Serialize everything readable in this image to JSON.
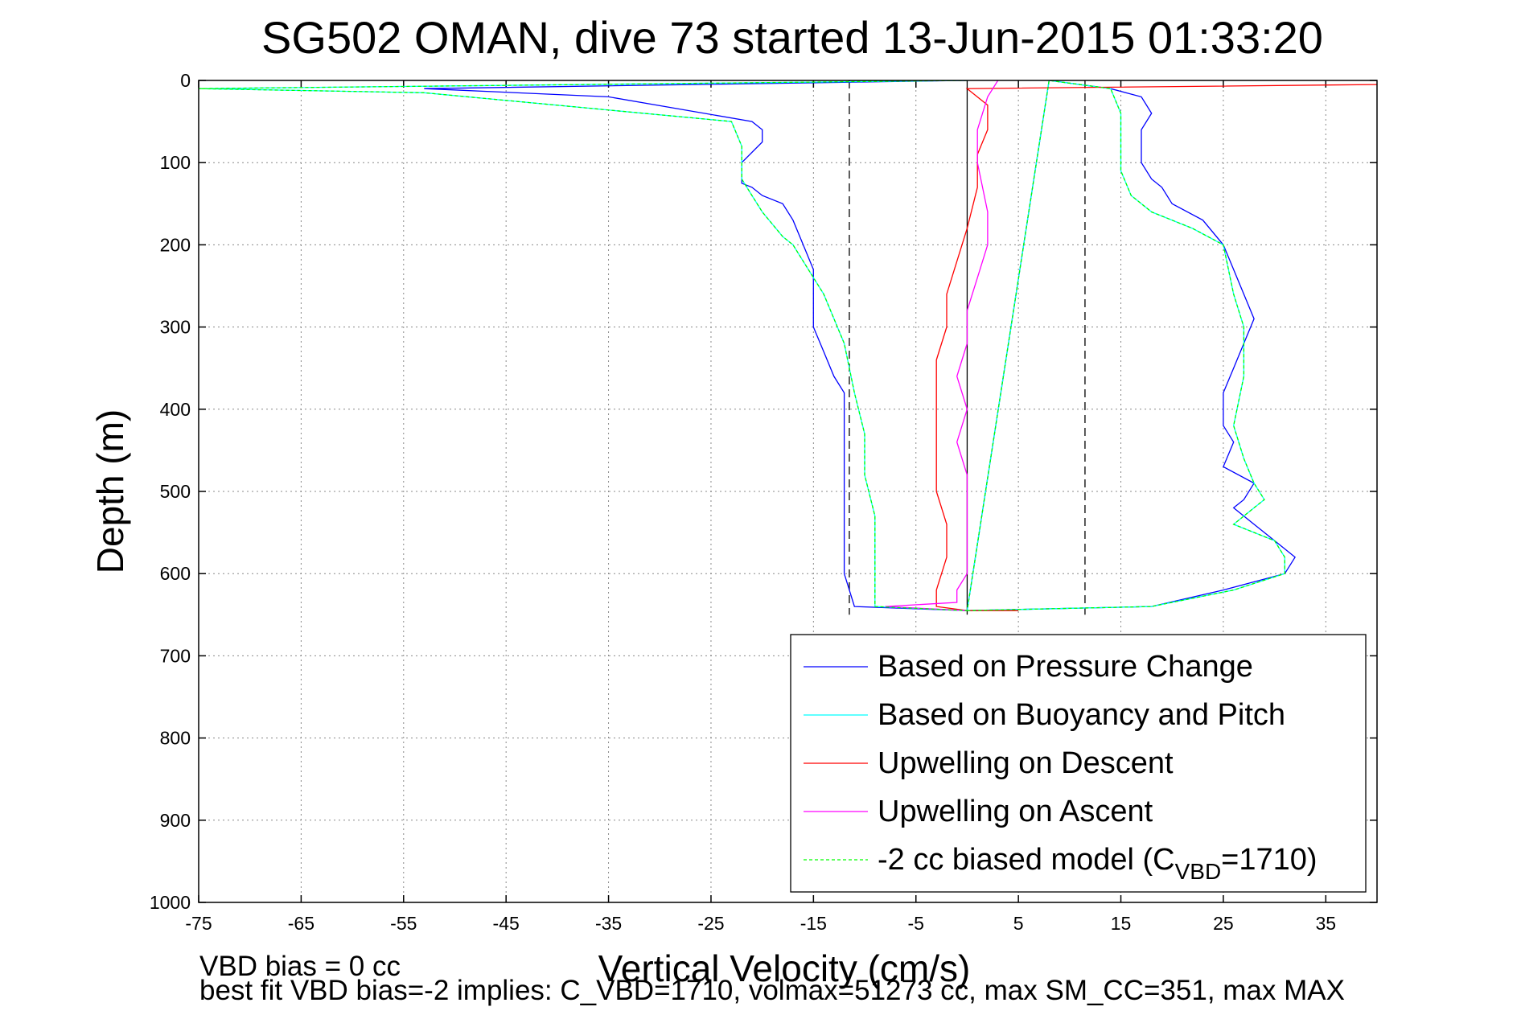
{
  "chart_data": {
    "type": "line",
    "title": "SG502 OMAN, dive 73 started 13-Jun-2015 01:33:20",
    "xlabel": "Vertical Velocity (cm/s)",
    "ylabel": "Depth (m)",
    "xlim": [
      -75,
      40
    ],
    "ylim": [
      0,
      1000
    ],
    "y_reversed": true,
    "grid": true,
    "x_ticks": [
      -75,
      -65,
      -55,
      -45,
      -35,
      -25,
      -15,
      -5,
      5,
      15,
      25,
      35
    ],
    "y_ticks": [
      0,
      100,
      200,
      300,
      400,
      500,
      600,
      700,
      800,
      900,
      1000
    ],
    "reference_lines": [
      {
        "x": 0,
        "style": "solid"
      },
      {
        "x": -11.5,
        "style": "dashed"
      },
      {
        "x": 11.5,
        "style": "dashed"
      }
    ],
    "legend_position": "bottom-right",
    "series": [
      {
        "name": "Based on Pressure Change",
        "color": "#0000ff",
        "style": "solid",
        "x": [
          0,
          -53,
          -35,
          -21,
          -20,
          -20,
          -22,
          -22,
          -22,
          -21,
          -20,
          -18,
          -17,
          -16,
          -15,
          -15,
          -15,
          -14,
          -13,
          -12,
          -12,
          -12,
          -12,
          -12,
          -12,
          -12,
          -12,
          -11,
          0,
          8,
          14,
          17,
          18,
          17,
          17,
          17,
          18,
          19,
          20,
          23,
          25,
          26,
          27,
          28,
          27,
          26,
          25,
          25,
          26,
          25,
          28,
          27,
          26,
          28,
          30,
          32,
          31,
          25,
          18,
          0
        ],
        "y": [
          0,
          10,
          20,
          50,
          60,
          75,
          100,
          120,
          125,
          130,
          140,
          150,
          170,
          200,
          230,
          260,
          300,
          330,
          360,
          380,
          400,
          430,
          450,
          480,
          520,
          560,
          600,
          640,
          645,
          0,
          10,
          20,
          40,
          60,
          80,
          100,
          120,
          130,
          150,
          170,
          200,
          230,
          260,
          290,
          320,
          350,
          380,
          420,
          440,
          470,
          490,
          510,
          520,
          540,
          560,
          580,
          600,
          620,
          640,
          645
        ]
      },
      {
        "name": "Based on Buoyancy and Pitch",
        "color": "#00ffff",
        "style": "solid",
        "x": [
          0,
          -75,
          -53,
          -23,
          -22,
          -22,
          -22,
          -21,
          -20,
          -18,
          -17,
          -16,
          -14,
          -12,
          -11,
          -10,
          -10,
          -9,
          -9,
          -9,
          -9,
          0,
          8,
          14,
          15,
          15,
          15,
          16,
          18,
          22,
          25,
          26,
          27,
          27,
          26,
          27,
          28,
          29,
          28,
          26,
          30,
          31,
          31,
          26,
          18,
          0
        ],
        "y": [
          0,
          10,
          15,
          50,
          80,
          100,
          120,
          140,
          160,
          190,
          200,
          220,
          260,
          320,
          380,
          430,
          480,
          530,
          580,
          620,
          640,
          645,
          0,
          10,
          40,
          80,
          110,
          140,
          160,
          180,
          200,
          260,
          300,
          360,
          420,
          460,
          490,
          510,
          520,
          540,
          560,
          580,
          600,
          620,
          640,
          645
        ]
      },
      {
        "name": "Upwelling on Descent",
        "color": "#ff0000",
        "style": "solid",
        "x": [
          40,
          0,
          2,
          2,
          1,
          1,
          0,
          -1,
          -2,
          -2,
          -3,
          -3,
          -3,
          -3,
          -3,
          -2,
          -2,
          -3,
          -3,
          0,
          5
        ],
        "y": [
          5,
          10,
          30,
          60,
          90,
          130,
          180,
          220,
          260,
          300,
          340,
          380,
          420,
          460,
          500,
          540,
          580,
          620,
          640,
          645,
          645
        ]
      },
      {
        "name": "Upwelling on Ascent",
        "color": "#ff00ff",
        "style": "solid",
        "x": [
          3,
          2,
          1,
          1,
          2,
          2,
          1,
          0,
          0,
          -1,
          0,
          -1,
          0,
          0,
          0,
          0,
          -1,
          -1,
          -8,
          0
        ],
        "y": [
          0,
          20,
          60,
          100,
          160,
          200,
          240,
          280,
          320,
          360,
          400,
          440,
          480,
          520,
          560,
          600,
          620,
          635,
          640,
          645
        ]
      },
      {
        "name": "-2 cc biased model (C",
        "name_subscript": "VBD",
        "name_suffix": "=1710)",
        "color": "#00ff00",
        "style": "dashed",
        "x": [
          0,
          -75,
          -53,
          -23,
          -22,
          -22,
          -22,
          -21,
          -20,
          -18,
          -17,
          -16,
          -14,
          -12,
          -11,
          -10,
          -10,
          -9,
          -9,
          -9,
          -9,
          0,
          8,
          14,
          15,
          15,
          15,
          16,
          18,
          22,
          25,
          26,
          27,
          27,
          26,
          27,
          28,
          29,
          28,
          26,
          30,
          31,
          31,
          26,
          18,
          0
        ],
        "y": [
          0,
          10,
          15,
          50,
          80,
          100,
          120,
          140,
          160,
          190,
          200,
          220,
          260,
          320,
          380,
          430,
          480,
          530,
          580,
          620,
          640,
          645,
          0,
          10,
          40,
          80,
          110,
          140,
          160,
          180,
          200,
          260,
          300,
          360,
          420,
          460,
          490,
          510,
          520,
          540,
          560,
          580,
          600,
          620,
          640,
          645
        ]
      }
    ]
  },
  "footnote": {
    "line1": "VBD bias = 0 cc",
    "line2": "best fit VBD bias=-2 implies: C_VBD=1710, volmax=51273 cc, max SM_CC=351, max MAX"
  }
}
